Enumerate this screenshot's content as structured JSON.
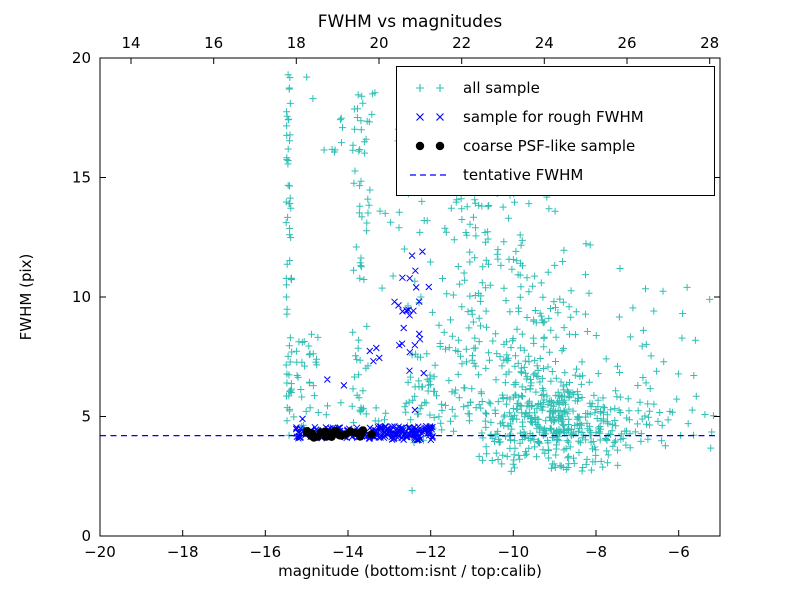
{
  "chart_data": {
    "type": "scatter",
    "title": "FWHM vs magnitudes",
    "xlabel": "magnitude (bottom:isnt / top:calib)",
    "ylabel": "FWHM (pix)",
    "xlim": [
      -20,
      -5
    ],
    "ylim": [
      0,
      20
    ],
    "x_ticks_bottom": [
      -20,
      -18,
      -16,
      -14,
      -12,
      -10,
      -8,
      -6
    ],
    "x_ticks_top": [
      14,
      16,
      18,
      20,
      22,
      24,
      26,
      28
    ],
    "top_axis_offset": 33.25,
    "y_ticks": [
      0,
      5,
      10,
      15,
      20
    ],
    "grid": false,
    "legend_position": "upper right",
    "legend": [
      "all sample",
      "sample for rough FWHM",
      "coarse PSF-like sample",
      "tentative FWHM"
    ],
    "line": {
      "label": "tentative FWHM",
      "y": 4.2,
      "color": "#0000ff",
      "dash": true
    },
    "series": [
      {
        "name": "all sample",
        "marker": "plus",
        "color": "#2fbfb4",
        "points": [
          [
            -12.45,
            1.9
          ],
          [
            -5.25,
            9.9
          ],
          [
            -5.2,
            4.35
          ],
          [
            -15.0,
            19.2
          ],
          [
            -14.85,
            18.3
          ],
          [
            -15.45,
            19.3
          ],
          [
            -13.35,
            18.55
          ],
          [
            -12.4,
            18.9
          ]
        ],
        "clusters": [
          {
            "kind": "box",
            "seed": 101,
            "n": 55,
            "x": [
              -15.5,
              -15.36
            ],
            "y": [
              4.2,
              19.3
            ]
          },
          {
            "kind": "box",
            "seed": 102,
            "n": 40,
            "x": [
              -15.45,
              -14.7
            ],
            "y": [
              3.9,
              8.5
            ]
          },
          {
            "kind": "box",
            "seed": 103,
            "n": 45,
            "x": [
              -13.9,
              -13.45
            ],
            "y": [
              5.0,
              18.6
            ]
          },
          {
            "kind": "box",
            "seed": 104,
            "n": 12,
            "x": [
              -14.0,
              -13.4
            ],
            "y": [
              16.0,
              18.6
            ]
          },
          {
            "kind": "box",
            "seed": 105,
            "n": 8,
            "x": [
              -14.65,
              -14.1
            ],
            "y": [
              15.5,
              17.6
            ]
          },
          {
            "kind": "gauss",
            "seed": 106,
            "n": 380,
            "cx": -8.9,
            "cy": 4.6,
            "sx": 0.95,
            "sy": 0.95,
            "ymin": 2.7,
            "ymax": 19.8,
            "xmin": -12.6,
            "xmax": -5.1
          },
          {
            "kind": "gauss",
            "seed": 107,
            "n": 200,
            "cx": -9.6,
            "cy": 7.4,
            "sx": 1.15,
            "sy": 1.9,
            "ymin": 3.0,
            "ymax": 16.5,
            "xmin": -12.6,
            "xmax": -5.1
          },
          {
            "kind": "gauss",
            "seed": 108,
            "n": 80,
            "cx": -10.2,
            "cy": 12.2,
            "sx": 0.85,
            "sy": 1.9,
            "ymin": 8.0,
            "ymax": 17.5,
            "xmin": -12.6,
            "xmax": -7.5
          },
          {
            "kind": "box",
            "seed": 109,
            "n": 45,
            "x": [
              -12.5,
              -10.7
            ],
            "y": [
              4.3,
              9.0
            ]
          },
          {
            "kind": "box",
            "seed": 110,
            "n": 30,
            "x": [
              -12.45,
              -10.6
            ],
            "y": [
              9.0,
              15.5
            ]
          },
          {
            "kind": "box",
            "seed": 111,
            "n": 8,
            "x": [
              -12.9,
              -11.7
            ],
            "y": [
              15.2,
              19.0
            ]
          },
          {
            "kind": "box",
            "seed": 112,
            "n": 26,
            "x": [
              -7.15,
              -5.15
            ],
            "y": [
              3.4,
              10.7
            ]
          },
          {
            "kind": "box",
            "seed": 113,
            "n": 18,
            "x": [
              -8.1,
              -6.4
            ],
            "y": [
              3.9,
              5.3
            ]
          },
          {
            "kind": "box",
            "seed": 114,
            "n": 25,
            "x": [
              -12.65,
              -11.9
            ],
            "y": [
              3.6,
              6.6
            ]
          },
          {
            "kind": "box",
            "seed": 115,
            "n": 15,
            "x": [
              -14.6,
              -13.0
            ],
            "y": [
              4.6,
              5.6
            ]
          },
          {
            "kind": "box",
            "seed": 116,
            "n": 10,
            "x": [
              -13.4,
              -12.5
            ],
            "y": [
              9.5,
              15.0
            ]
          }
        ]
      },
      {
        "name": "sample for rough FWHM",
        "marker": "x",
        "color": "#0000ff",
        "points": [
          [
            -14.5,
            6.55
          ],
          [
            -14.1,
            6.3
          ],
          [
            -12.2,
            11.9
          ],
          [
            -12.35,
            10.4
          ],
          [
            -15.1,
            4.9
          ]
        ],
        "clusters": [
          {
            "kind": "box",
            "seed": 201,
            "n": 85,
            "x": [
              -15.25,
              -13.2
            ],
            "y": [
              4.05,
              4.55
            ]
          },
          {
            "kind": "box",
            "seed": 202,
            "n": 110,
            "x": [
              -13.25,
              -11.95
            ],
            "y": [
              4.0,
              4.6
            ]
          },
          {
            "kind": "box",
            "seed": 203,
            "n": 13,
            "x": [
              -13.65,
              -12.5
            ],
            "y": [
              7.3,
              9.9
            ]
          },
          {
            "kind": "box",
            "seed": 204,
            "n": 14,
            "x": [
              -12.75,
              -11.95
            ],
            "y": [
              5.2,
              12.4
            ]
          }
        ]
      },
      {
        "name": "coarse PSF-like sample",
        "marker": "dot",
        "color": "#000000",
        "points": [],
        "clusters": [
          {
            "kind": "box",
            "seed": 301,
            "n": 26,
            "x": [
              -15.02,
              -13.28
            ],
            "y": [
              4.12,
              4.42
            ]
          }
        ]
      }
    ]
  }
}
